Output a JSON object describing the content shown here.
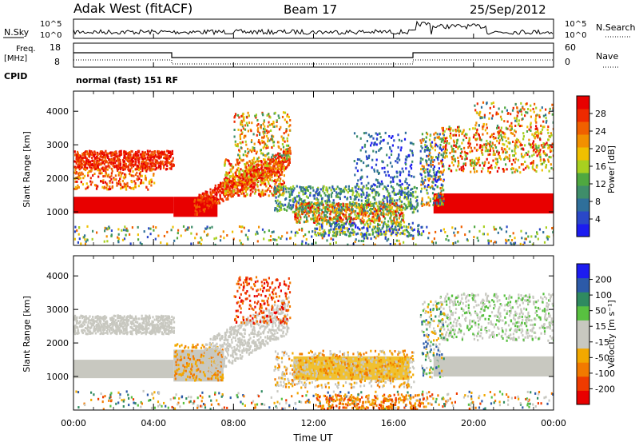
{
  "header": {
    "station": "Adak West (fitACF)",
    "beam": "Beam 17",
    "date": "25/Sep/2012"
  },
  "top_panel": {
    "left_label": "N.Sky",
    "right_label": "N.Search",
    "tick_top": "10^5",
    "tick_bottom": "10^0",
    "right_tick_top": "10^5",
    "right_tick_bottom": "10^0"
  },
  "freq_panel": {
    "left_label_line1": "Freq.",
    "left_label_line2": "[MHz]",
    "left_ticks": [
      "18",
      "8"
    ],
    "right_label": "Nave",
    "right_ticks": [
      "60",
      "0"
    ],
    "cpid_label": "CPID",
    "cpid_text": "normal (fast) 151 RF"
  },
  "colors": {
    "power_scale": [
      "#1c1cf0",
      "#2a48c8",
      "#2f6f9a",
      "#3f8e6a",
      "#4fa840",
      "#a8d020",
      "#f0c000",
      "#f29000",
      "#f06000",
      "#ee2a00",
      "#e80000"
    ],
    "velocity_scale": [
      "#e80000",
      "#ef3b00",
      "#f27a00",
      "#f2a800",
      "#c8c8c0",
      "#c8c8c0",
      "#58c040",
      "#2f8a60",
      "#2c5aa8",
      "#1c1cf0"
    ]
  },
  "chart_data": [
    {
      "type": "heatmap",
      "name_label": "Power [dB]",
      "ylabel": "Slant Range [km]",
      "xlabel": "",
      "ylim": [
        0,
        4600
      ],
      "xlim_hours": [
        0,
        24
      ],
      "yticks": [
        "1000",
        "2000",
        "3000",
        "4000"
      ],
      "colorbar_ticks": [
        "4",
        "8",
        "12",
        "16",
        "20",
        "24",
        "28"
      ],
      "regions": [
        {
          "t": [
            0,
            5
          ],
          "r": [
            900,
            1500
          ],
          "level": "high"
        },
        {
          "t": [
            0,
            5
          ],
          "r": [
            2300,
            2900
          ],
          "level": "high"
        },
        {
          "t": [
            5,
            7.5
          ],
          "r": [
            850,
            1500
          ],
          "level": "high"
        },
        {
          "t": [
            7.5,
            10.5
          ],
          "r": [
            1000,
            2800
          ],
          "level": "mid"
        },
        {
          "t": [
            8,
            11
          ],
          "r": [
            2600,
            4000
          ],
          "level": "mid"
        },
        {
          "t": [
            11,
            17
          ],
          "r": [
            600,
            1800
          ],
          "level": "mixed"
        },
        {
          "t": [
            17.5,
            24
          ],
          "r": [
            900,
            1600
          ],
          "level": "high"
        },
        {
          "t": [
            18,
            24
          ],
          "r": [
            2200,
            3600
          ],
          "level": "mid"
        }
      ]
    },
    {
      "type": "heatmap",
      "name_label": "Velocity [m s⁻¹]",
      "ylabel": "Slant Range [km]",
      "xlabel": "Time UT",
      "ylim": [
        0,
        4600
      ],
      "xlim_hours": [
        0,
        24
      ],
      "yticks": [
        "1000",
        "2000",
        "3000",
        "4000"
      ],
      "xticks": [
        "00:00",
        "04:00",
        "08:00",
        "12:00",
        "16:00",
        "20:00",
        "00:00"
      ],
      "colorbar_ticks": [
        "200",
        "100",
        "50",
        "15",
        "-15",
        "-50",
        "-100",
        "-200"
      ]
    }
  ]
}
